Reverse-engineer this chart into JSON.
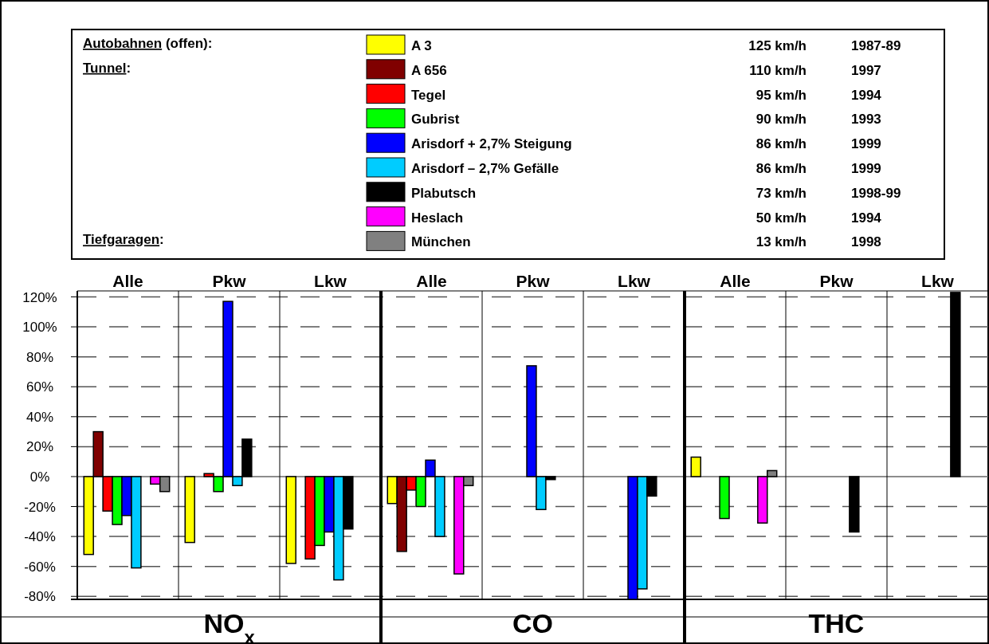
{
  "chart_data": {
    "type": "bar",
    "categories": [
      "Alle",
      "Pkw",
      "Lkw",
      "Alle",
      "Pkw",
      "Lkw",
      "Alle",
      "Pkw",
      "Lkw"
    ],
    "series": [
      {
        "name": "A 3",
        "color": "#ffff00",
        "values": [
          -52,
          -44,
          -58,
          -18,
          null,
          null,
          13,
          null,
          null
        ]
      },
      {
        "name": "A 656",
        "color": "#800000",
        "values": [
          30,
          null,
          null,
          -50,
          null,
          null,
          null,
          null,
          null
        ]
      },
      {
        "name": "Tegel",
        "color": "#ff0000",
        "values": [
          -23,
          2,
          -55,
          -9,
          null,
          null,
          null,
          null,
          null
        ]
      },
      {
        "name": "Gubrist",
        "color": "#00ff00",
        "values": [
          -32,
          -10,
          -46,
          -20,
          null,
          null,
          -28,
          null,
          null
        ]
      },
      {
        "name": "Arisdorf + 2,7% Steigung",
        "color": "#0000ff",
        "values": [
          -26,
          117,
          -37,
          11,
          74,
          -82,
          null,
          null,
          null
        ]
      },
      {
        "name": "Arisdorf – 2,7% Gefälle",
        "color": "#00ccff",
        "values": [
          -61,
          -6,
          -69,
          -40,
          -22,
          -75,
          null,
          null,
          null
        ]
      },
      {
        "name": "Plabutsch",
        "color": "#000000",
        "values": [
          null,
          25,
          -35,
          null,
          -2,
          -13,
          null,
          -37,
          123
        ]
      },
      {
        "name": "Heslach",
        "color": "#ff00ff",
        "values": [
          -5,
          null,
          null,
          -65,
          null,
          null,
          -31,
          null,
          null
        ]
      },
      {
        "name": "München",
        "color": "#808080",
        "values": [
          -10,
          null,
          null,
          -6,
          null,
          null,
          4,
          null,
          null
        ]
      }
    ],
    "ylim": [
      -82,
      124
    ],
    "yticks": [
      {
        "value": -80,
        "label": "-80%"
      },
      {
        "value": -60,
        "label": "-60%"
      },
      {
        "value": -40,
        "label": "-40%"
      },
      {
        "value": -20,
        "label": "-20%"
      },
      {
        "value": 0,
        "label": "0%"
      },
      {
        "value": 20,
        "label": "20%"
      },
      {
        "value": 40,
        "label": "40%"
      },
      {
        "value": 60,
        "label": "60%"
      },
      {
        "value": 80,
        "label": "80%"
      },
      {
        "value": 100,
        "label": "100%"
      },
      {
        "value": 120,
        "label": "120%"
      }
    ],
    "grid": "y",
    "legend": "top",
    "annotations": [
      "NO$_{x}$",
      "CO",
      "THC",
      "Autobahnen (offen):",
      "Tunnel:",
      "Tiefgaragen:",
      "125 km/h",
      "110 km/h",
      "95 km/h",
      "90 km/h",
      "86 km/h",
      "86 km/h",
      "73 km/h",
      "50 km/h",
      "13 km/h",
      "1987-89",
      "1997",
      "1994",
      "1993",
      "1999",
      "1999",
      "1998-99",
      "1994",
      "1998"
    ]
  }
}
